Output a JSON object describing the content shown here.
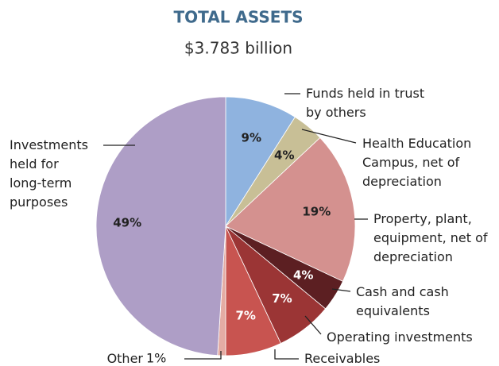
{
  "chart_data": {
    "type": "pie",
    "title": "TOTAL ASSETS",
    "subtitle": "$3.783 billion",
    "categories": [
      "Funds held in trust\nby others",
      "Health Education\nCampus, net of\ndepreciation",
      "Property, plant,\nequipment, net of\ndepreciation",
      "Cash and cash\nequivalents",
      "Operating investments",
      "Receivables",
      "Other",
      "Investments\nheld for\nlong-term\npurposes"
    ],
    "values": [
      9,
      4,
      19,
      4,
      7,
      7,
      1,
      49
    ],
    "value_labels": [
      "9%",
      "4%",
      "19%",
      "4%",
      "7%",
      "7%",
      "1%",
      "49%"
    ],
    "colors": [
      "#8fb3df",
      "#c8bf96",
      "#d4918f",
      "#5c1f22",
      "#9b3535",
      "#c85450",
      "#e4aca4",
      "#ae9ec6"
    ]
  }
}
